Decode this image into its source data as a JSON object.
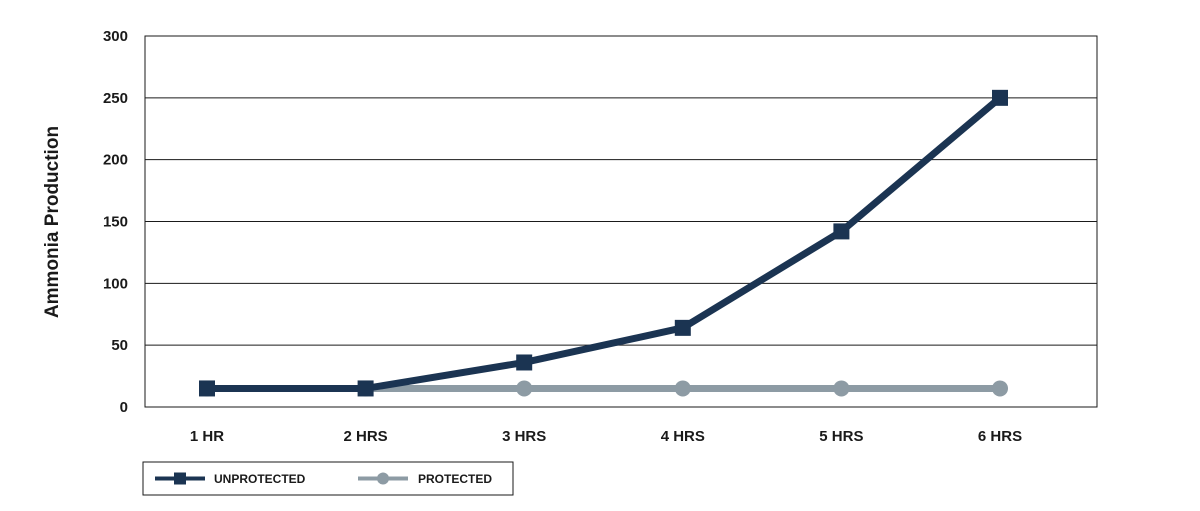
{
  "chart_data": {
    "type": "line",
    "categories": [
      "1 HR",
      "2 HRS",
      "3 HRS",
      "4 HRS",
      "5 HRS",
      "6 HRS"
    ],
    "series": [
      {
        "name": "UNPROTECTED",
        "values": [
          15,
          15,
          36,
          64,
          142,
          250
        ],
        "color": "#1b3452",
        "marker": "square"
      },
      {
        "name": "PROTECTED",
        "values": [
          15,
          15,
          15,
          15,
          15,
          15
        ],
        "color": "#8d9ba4",
        "marker": "circle"
      }
    ],
    "ylabel": "Ammonia Production",
    "xlabel": "",
    "ylim": [
      0,
      300
    ],
    "yticks": [
      "0",
      "50",
      "100",
      "150",
      "200",
      "250",
      "300"
    ],
    "grid": true,
    "legend_position": "bottom-left"
  }
}
